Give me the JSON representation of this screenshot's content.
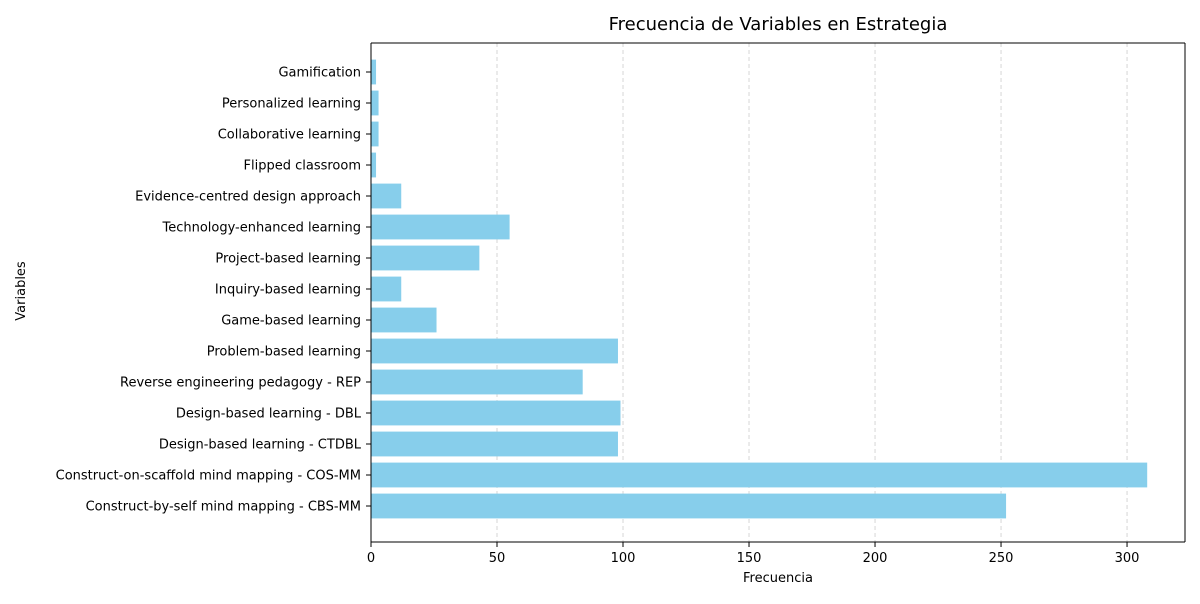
{
  "chart_data": {
    "type": "bar",
    "orientation": "horizontal",
    "title": "Frecuencia de Variables en Estrategia",
    "xlabel": "Frecuencia",
    "ylabel": "Variables",
    "categories": [
      "Construct-by-self mind mapping - CBS-MM",
      "Construct-on-scaffold mind mapping - COS-MM",
      "Design-based learning - CTDBL",
      "Design-based learning - DBL",
      "Reverse engineering pedagogy - REP",
      "Problem-based learning",
      "Game-based learning",
      "Inquiry-based learning",
      "Project-based learning",
      "Technology-enhanced learning",
      "Evidence-centred design approach",
      "Flipped classroom",
      "Collaborative learning",
      "Personalized learning",
      "Gamification"
    ],
    "values": [
      252,
      308,
      98,
      99,
      84,
      98,
      26,
      12,
      43,
      55,
      12,
      2,
      3,
      3,
      2
    ],
    "xlim": [
      0,
      323
    ],
    "xticks": [
      0,
      50,
      100,
      150,
      200,
      250,
      300
    ],
    "grid": "x-dashed",
    "bar_color": "#87ceeb",
    "grid_color": "#cccccc"
  }
}
